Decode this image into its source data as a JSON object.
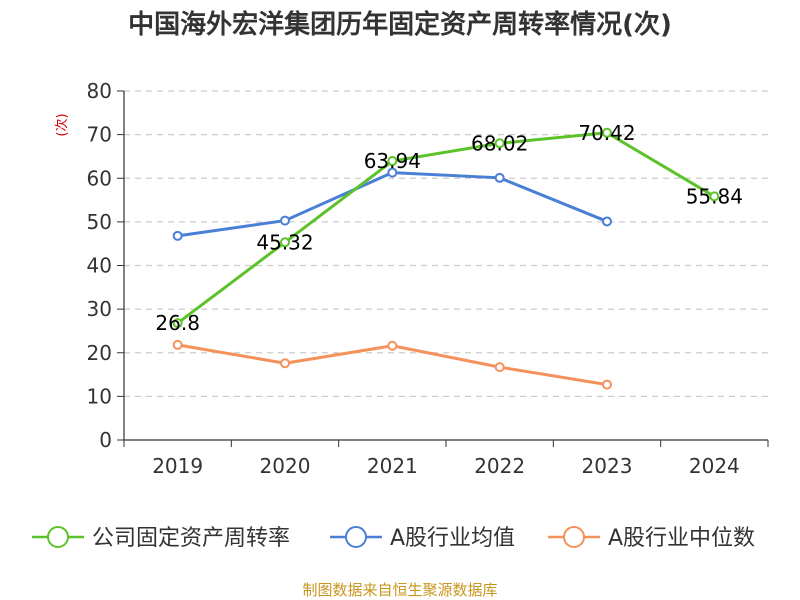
{
  "chart_data": {
    "type": "line",
    "title": "中国海外宏洋集团历年固定资产周转率情况(次)",
    "ylabel": "(次)",
    "xlabel": "",
    "categories": [
      "2019",
      "2020",
      "2021",
      "2022",
      "2023",
      "2024"
    ],
    "ylim": [
      0,
      80
    ],
    "yticks": [
      0,
      10,
      20,
      30,
      40,
      50,
      60,
      70,
      80
    ],
    "grid": true,
    "legend_position": "bottom",
    "series": [
      {
        "name": "公司固定资产周转率",
        "color": "#5cc22a",
        "values": [
          26.8,
          45.32,
          63.94,
          68.02,
          70.42,
          55.84
        ],
        "labels": [
          "26.8",
          "45.32",
          "63.94",
          "68.02",
          "70.42",
          "55.84"
        ]
      },
      {
        "name": "A股行业均值",
        "color": "#4a7fd6",
        "values": [
          46.8,
          50.3,
          61.3,
          60.1,
          50.1,
          null
        ]
      },
      {
        "name": "A股行业中位数",
        "color": "#f5915a",
        "values": [
          21.8,
          17.6,
          21.6,
          16.7,
          12.7,
          null
        ]
      }
    ]
  },
  "source": "制图数据来自恒生聚源数据库"
}
